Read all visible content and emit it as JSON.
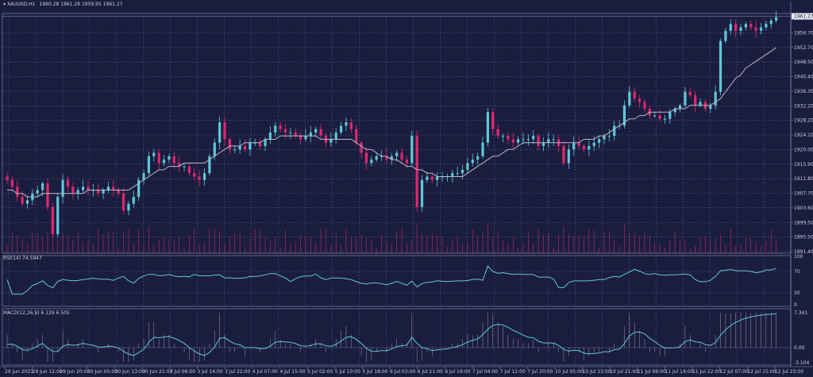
{
  "main_pane": {
    "symbol": "XAUUSD,H1",
    "ohlc": "1960.28 1961.28 1959.95 1961.27",
    "current_price": "1961.27"
  },
  "price_axis": [
    "1964.90",
    "1956.70",
    "1952.70",
    "1948.50",
    "1940.40",
    "1936.30",
    "1932.20",
    "1928.20",
    "1924.10",
    "1920.00",
    "1915.90",
    "1911.80",
    "1907.70",
    "1903.60",
    "1899.50",
    "1895.50",
    "1891.40"
  ],
  "rsi": {
    "title": "RSI(14) 74.5947",
    "axis": [
      "100",
      "70",
      "30",
      "0"
    ]
  },
  "macd": {
    "title": "MACD(12,26,9) 6.129 6.505",
    "axis": [
      "7.341",
      "0.00",
      "-3.104"
    ]
  },
  "time_axis": [
    "29 Jun 2023",
    "29 Jun 12:00",
    "29 Jun 20:00",
    "30 Jun 05:00",
    "30 Jun 13:00",
    "30 Jun 21:00",
    "3 Jul 06:00",
    "3 Jul 14:00",
    "3 Jul 22:00",
    "4 Jul 07:00",
    "4 Jul 15:00",
    "5 Jul 02:00",
    "5 Jul 10:00",
    "5 Jul 18:00",
    "6 Jul 03:00",
    "6 Jul 11:00",
    "6 Jul 19:00",
    "7 Jul 04:00",
    "7 Jul 12:00",
    "7 Jul 20:00",
    "10 Jul 05:00",
    "10 Jul 13:00",
    "10 Jul 21:00",
    "11 Jul 06:00",
    "11 Jul 14:00",
    "11 Jul 22:00",
    "12 Jul 07:00",
    "12 Jul 15:00",
    "12 Jul 23:00"
  ],
  "colors": {
    "background": "#1b1d3f",
    "bull": "#5ec8d8",
    "bear": "#e0286e",
    "ma": "#b8b8c8",
    "grid": "#5a5d86"
  },
  "chart_data": {
    "type": "candlestick",
    "series_close": [
      1913,
      1911,
      1908,
      1906,
      1907,
      1909,
      1910,
      1912,
      1905,
      1897,
      1908,
      1913,
      1911,
      1909,
      1910,
      1911,
      1910,
      1910,
      1909,
      1910,
      1911,
      1910,
      1909,
      1904,
      1906,
      1908,
      1913,
      1915,
      1920,
      1921,
      1918,
      1919,
      1920,
      1918,
      1917,
      1917,
      1915,
      1914,
      1913,
      1915,
      1920,
      1924,
      1930,
      1925,
      1922,
      1922,
      1923,
      1922,
      1924,
      1924,
      1923,
      1925,
      1927,
      1929,
      1928,
      1927,
      1927,
      1926,
      1925,
      1926,
      1927,
      1928,
      1926,
      1924,
      1925,
      1927,
      1929,
      1930,
      1928,
      1924,
      1921,
      1918,
      1919,
      1920,
      1920,
      1919,
      1920,
      1921,
      1919,
      1918,
      1926,
      1905,
      1913,
      1914,
      1913,
      1914,
      1914,
      1914,
      1915,
      1915,
      1916,
      1918,
      1919,
      1920,
      1924,
      1933,
      1928,
      1926,
      1926,
      1925,
      1924,
      1925,
      1925,
      1925,
      1926,
      1923,
      1924,
      1925,
      1925,
      1923,
      1918,
      1922,
      1924,
      1923,
      1922,
      1923,
      1924,
      1925,
      1926,
      1926,
      1929,
      1929,
      1935,
      1939,
      1937,
      1936,
      1934,
      1932,
      1932,
      1931,
      1931,
      1933,
      1934,
      1935,
      1939,
      1938,
      1935,
      1936,
      1934,
      1935,
      1939,
      1954,
      1957,
      1959,
      1957,
      1958,
      1959,
      1958,
      1957,
      1958,
      1959,
      1960,
      1961
    ],
    "ma_close": [
      1910,
      1910,
      1909,
      1909,
      1908,
      1908,
      1908,
      1909,
      1909,
      1909,
      1909,
      1909,
      1909,
      1909,
      1909,
      1909,
      1910,
      1910,
      1910,
      1910,
      1910,
      1910,
      1910,
      1910,
      1910,
      1911,
      1912,
      1913,
      1914,
      1915,
      1916,
      1916,
      1917,
      1917,
      1917,
      1918,
      1918,
      1918,
      1918,
      1918,
      1919,
      1920,
      1921,
      1922,
      1923,
      1923,
      1923,
      1924,
      1924,
      1924,
      1924,
      1925,
      1925,
      1925,
      1926,
      1926,
      1926,
      1926,
      1926,
      1926,
      1926,
      1926,
      1925,
      1925,
      1925,
      1925,
      1925,
      1925,
      1925,
      1924,
      1923,
      1922,
      1922,
      1921,
      1920,
      1920,
      1919,
      1919,
      1918,
      1917,
      1917,
      1916,
      1916,
      1915,
      1915,
      1914,
      1914,
      1914,
      1914,
      1914,
      1914,
      1915,
      1916,
      1917,
      1918,
      1919,
      1920,
      1920,
      1921,
      1922,
      1922,
      1923,
      1924,
      1924,
      1924,
      1924,
      1924,
      1924,
      1924,
      1924,
      1924,
      1924,
      1924,
      1924,
      1925,
      1925,
      1925,
      1926,
      1926,
      1927,
      1928,
      1929,
      1930,
      1931,
      1931,
      1932,
      1932,
      1933,
      1933,
      1933,
      1933,
      1933,
      1934,
      1934,
      1934,
      1935,
      1935,
      1935,
      1935,
      1935,
      1936,
      1937,
      1939,
      1941,
      1943,
      1944,
      1946,
      1947,
      1948,
      1949,
      1950,
      1951,
      1952
    ],
    "ylim": [
      1891.4,
      1964.9
    ]
  }
}
